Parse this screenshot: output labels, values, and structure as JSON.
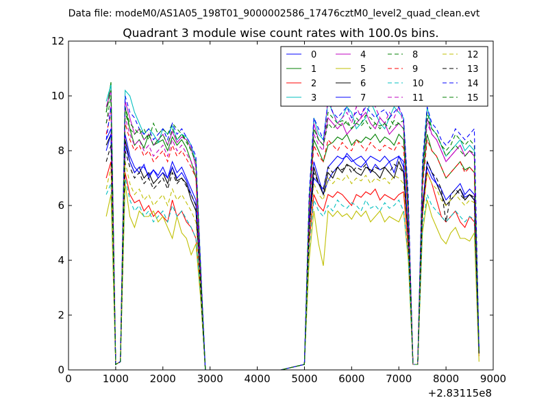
{
  "chart_data": {
    "type": "line",
    "supertitle": "Data file: modeM0/AS1A05_198T01_9000002586_17476cztM0_level2_quad_clean.evt",
    "title": "Quadrant 3 module wise count rates with 100.0s bins.",
    "xlabel": "",
    "ylabel": "",
    "x_offset_label": "+2.83115e8",
    "xlim": [
      0,
      9000
    ],
    "ylim": [
      0,
      12
    ],
    "x_ticks": [
      "0",
      "1000",
      "2000",
      "3000",
      "4000",
      "5000",
      "6000",
      "7000",
      "8000",
      "9000"
    ],
    "y_ticks": [
      "0",
      "2",
      "4",
      "6",
      "8",
      "10",
      "12"
    ],
    "legend_position": "top-right",
    "x": [
      800,
      900,
      1000,
      1100,
      1200,
      1300,
      1400,
      1500,
      1600,
      1700,
      1800,
      1900,
      2000,
      2100,
      2200,
      2300,
      2400,
      2500,
      2600,
      2700,
      2800,
      2900,
      3000,
      3500,
      4000,
      4500,
      5000,
      5100,
      5200,
      5300,
      5400,
      5500,
      5600,
      5700,
      5800,
      5900,
      6000,
      6100,
      6200,
      6300,
      6400,
      6500,
      6600,
      6700,
      6800,
      6900,
      7000,
      7100,
      7200,
      7300,
      7400,
      7500,
      7600,
      7700,
      7800,
      7900,
      8000,
      8100,
      8200,
      8300,
      8400,
      8500,
      8600,
      8700
    ],
    "series": [
      {
        "name": "0",
        "color": "#0000ff",
        "dash": "solid",
        "values": [
          8.4,
          8.8,
          0.2,
          0.3,
          8.6,
          7.8,
          7.4,
          7.2,
          7.5,
          7.0,
          7.3,
          7.1,
          7.4,
          7.0,
          7.6,
          7.2,
          7.4,
          7.0,
          6.6,
          6.2,
          3.2,
          0.0,
          0,
          0,
          0,
          0,
          0.2,
          5.4,
          7.6,
          7.0,
          6.4,
          6.9,
          7.2,
          7.4,
          7.6,
          7.9,
          7.7,
          7.5,
          7.4,
          7.6,
          7.2,
          7.5,
          7.3,
          7.4,
          7.6,
          7.2,
          7.8,
          7.4,
          5.0,
          0.2,
          0.2,
          6.0,
          7.4,
          7.0,
          6.8,
          6.4,
          6.0,
          6.2,
          6.4,
          6.6,
          6.3,
          6.4,
          6.2,
          0.6
        ]
      },
      {
        "name": "1",
        "color": "#008000",
        "dash": "solid",
        "values": [
          9.4,
          10.5,
          0.2,
          0.3,
          9.6,
          8.8,
          8.2,
          8.4,
          8.1,
          8.6,
          8.2,
          8.3,
          8.4,
          8.0,
          8.5,
          8.2,
          8.4,
          8.1,
          7.6,
          7.0,
          3.6,
          0.0,
          0,
          0,
          0,
          0,
          0.2,
          6.0,
          8.4,
          8.0,
          7.6,
          8.2,
          8.3,
          8.5,
          8.4,
          8.6,
          8.2,
          8.4,
          8.3,
          8.5,
          8.4,
          8.6,
          8.3,
          8.5,
          8.4,
          8.2,
          8.6,
          8.4,
          5.6,
          0.2,
          0.2,
          6.8,
          8.6,
          8.0,
          7.8,
          7.4,
          7.0,
          7.2,
          7.4,
          7.6,
          7.3,
          7.4,
          7.2,
          0.6
        ]
      },
      {
        "name": "2",
        "color": "#ff0000",
        "dash": "solid",
        "values": [
          7.0,
          7.6,
          0.2,
          0.3,
          7.2,
          6.4,
          6.1,
          6.2,
          5.8,
          6.0,
          5.6,
          5.8,
          5.6,
          5.4,
          6.2,
          5.6,
          5.8,
          5.4,
          5.2,
          4.8,
          2.8,
          0.0,
          0,
          0,
          0,
          0,
          0.2,
          4.6,
          6.4,
          6.0,
          5.8,
          6.4,
          6.3,
          6.5,
          6.4,
          6.2,
          6.0,
          6.4,
          6.3,
          6.5,
          6.4,
          6.6,
          6.2,
          6.4,
          6.3,
          6.2,
          6.4,
          6.5,
          4.4,
          0.2,
          0.2,
          5.6,
          7.2,
          6.8,
          6.2,
          5.6,
          5.4,
          5.6,
          5.8,
          5.4,
          5.2,
          5.6,
          5.4,
          0.5
        ]
      },
      {
        "name": "3",
        "color": "#00bfbf",
        "dash": "solid",
        "values": [
          9.8,
          10.4,
          0.2,
          0.3,
          10.2,
          10.0,
          9.4,
          9.0,
          8.6,
          8.8,
          8.6,
          8.3,
          8.8,
          8.6,
          8.9,
          8.4,
          8.6,
          8.5,
          8.2,
          7.6,
          3.8,
          0.0,
          0,
          0,
          0,
          0,
          0.2,
          6.2,
          9.2,
          8.6,
          8.4,
          9.8,
          9.4,
          9.0,
          9.2,
          9.6,
          9.4,
          8.8,
          9.0,
          9.2,
          9.8,
          9.4,
          9.0,
          8.8,
          9.2,
          9.6,
          9.4,
          9.2,
          6.2,
          0.2,
          0.2,
          7.4,
          9.6,
          8.8,
          8.6,
          8.2,
          7.8,
          8.0,
          8.2,
          8.4,
          8.0,
          8.2,
          8.0,
          0.7
        ]
      },
      {
        "name": "4",
        "color": "#bf00bf",
        "dash": "solid",
        "values": [
          9.6,
          10.2,
          0.2,
          0.3,
          9.8,
          9.2,
          8.6,
          8.8,
          8.4,
          8.6,
          8.2,
          8.4,
          8.6,
          8.2,
          8.7,
          8.3,
          8.5,
          8.4,
          8.1,
          7.4,
          3.7,
          0.0,
          0,
          0,
          0,
          0,
          0.2,
          6.0,
          9.0,
          8.4,
          8.2,
          9.2,
          9.0,
          8.8,
          9.0,
          8.6,
          8.8,
          9.0,
          9.2,
          9.4,
          9.0,
          8.8,
          9.2,
          9.0,
          8.6,
          8.8,
          9.0,
          8.8,
          6.0,
          0.2,
          0.2,
          7.2,
          9.2,
          8.6,
          8.4,
          8.0,
          7.6,
          7.8,
          8.0,
          8.2,
          7.8,
          8.0,
          7.8,
          0.7
        ]
      },
      {
        "name": "5",
        "color": "#bfbf00",
        "dash": "solid",
        "values": [
          5.6,
          6.4,
          0.2,
          0.3,
          6.8,
          5.6,
          5.2,
          5.8,
          5.6,
          5.6,
          5.8,
          5.4,
          5.6,
          5.2,
          4.8,
          5.6,
          5.0,
          4.8,
          4.2,
          4.6,
          2.6,
          0.0,
          0,
          0,
          0,
          0,
          0.2,
          4.0,
          5.8,
          4.6,
          3.8,
          5.8,
          5.6,
          5.8,
          5.6,
          5.7,
          5.5,
          5.8,
          5.6,
          5.8,
          5.4,
          5.6,
          5.8,
          5.4,
          5.6,
          5.5,
          5.4,
          5.8,
          4.0,
          0.2,
          0.2,
          5.0,
          6.2,
          5.6,
          5.2,
          4.8,
          4.6,
          5.0,
          5.2,
          4.8,
          4.8,
          4.7,
          5.0,
          0.3
        ]
      },
      {
        "name": "6",
        "color": "#000000",
        "dash": "solid",
        "values": [
          8.2,
          8.6,
          0.2,
          0.3,
          8.4,
          7.6,
          7.2,
          7.4,
          7.0,
          7.2,
          6.8,
          7.0,
          7.2,
          6.8,
          7.4,
          6.9,
          7.0,
          6.8,
          6.2,
          5.8,
          3.0,
          0.0,
          0,
          0,
          0,
          0,
          0.2,
          5.2,
          7.4,
          6.8,
          6.4,
          7.2,
          7.0,
          7.4,
          7.2,
          7.5,
          7.4,
          7.2,
          7.1,
          7.4,
          7.3,
          7.2,
          7.0,
          7.4,
          7.2,
          7.0,
          7.6,
          7.2,
          4.8,
          0.2,
          0.2,
          5.8,
          7.6,
          7.2,
          6.8,
          6.4,
          6.0,
          6.2,
          6.4,
          6.6,
          6.2,
          6.4,
          6.2,
          0.6
        ]
      },
      {
        "name": "7",
        "color": "#0000ff",
        "dash": "solid",
        "values": [
          8.0,
          8.6,
          0.2,
          0.3,
          8.2,
          7.6,
          7.2,
          7.4,
          7.4,
          7.1,
          7.3,
          7.0,
          7.2,
          7.0,
          7.4,
          7.0,
          7.2,
          6.9,
          6.4,
          6.0,
          3.0,
          0.0,
          0,
          0,
          0,
          0,
          0.2,
          5.2,
          7.0,
          6.8,
          6.6,
          7.4,
          7.6,
          7.8,
          7.7,
          7.8,
          7.6,
          7.7,
          7.8,
          7.6,
          7.8,
          7.7,
          7.6,
          7.8,
          7.6,
          7.7,
          7.8,
          7.6,
          5.0,
          0.2,
          0.2,
          6.0,
          7.6,
          7.2,
          6.8,
          6.6,
          6.2,
          6.4,
          6.6,
          6.8,
          6.4,
          6.6,
          6.4,
          0.6
        ]
      },
      {
        "name": "8",
        "color": "#008000",
        "dash": "dashed",
        "values": [
          9.4,
          10.2,
          0.2,
          0.3,
          9.6,
          9.0,
          8.8,
          8.6,
          8.8,
          8.4,
          9.0,
          8.6,
          8.8,
          8.6,
          9.0,
          8.8,
          8.6,
          8.4,
          8.0,
          7.6,
          3.6,
          0.0,
          0,
          0,
          0,
          0,
          0.2,
          6.0,
          8.8,
          8.4,
          8.2,
          9.4,
          9.2,
          9.0,
          9.1,
          9.0,
          8.8,
          9.2,
          9.0,
          9.3,
          9.2,
          9.0,
          8.8,
          9.0,
          9.2,
          8.9,
          9.0,
          9.1,
          6.0,
          0.2,
          0.2,
          7.2,
          9.4,
          8.8,
          8.6,
          8.2,
          8.0,
          8.2,
          8.6,
          8.4,
          8.2,
          8.4,
          8.2,
          0.7
        ]
      },
      {
        "name": "9",
        "color": "#ff0000",
        "dash": "dashed",
        "values": [
          8.6,
          9.4,
          0.2,
          0.3,
          9.0,
          8.4,
          8.0,
          8.2,
          7.8,
          8.0,
          7.6,
          7.8,
          8.0,
          7.6,
          8.2,
          7.8,
          8.0,
          7.7,
          7.4,
          7.0,
          3.4,
          0.0,
          0,
          0,
          0,
          0,
          0.2,
          5.8,
          8.2,
          7.8,
          7.6,
          8.4,
          8.2,
          8.0,
          8.3,
          8.1,
          8.0,
          8.4,
          8.2,
          8.0,
          8.3,
          8.1,
          8.0,
          8.2,
          8.1,
          8.0,
          8.3,
          8.1,
          5.6,
          0.2,
          0.2,
          6.6,
          8.4,
          8.0,
          7.8,
          7.4,
          7.0,
          7.2,
          7.4,
          7.6,
          7.2,
          7.4,
          7.2,
          0.6
        ]
      },
      {
        "name": "10",
        "color": "#00bfbf",
        "dash": "dashed",
        "values": [
          6.4,
          6.8,
          0.2,
          0.3,
          7.0,
          6.2,
          5.8,
          6.0,
          5.6,
          5.8,
          5.4,
          5.6,
          5.8,
          5.4,
          6.0,
          5.6,
          5.8,
          5.5,
          5.2,
          4.8,
          2.8,
          0.0,
          0,
          0,
          0,
          0,
          0.2,
          4.4,
          6.2,
          5.8,
          5.6,
          6.0,
          5.8,
          6.2,
          6.0,
          5.9,
          6.1,
          6.0,
          5.8,
          6.2,
          5.9,
          6.0,
          5.8,
          6.1,
          5.9,
          6.0,
          6.2,
          5.8,
          4.2,
          0.2,
          0.2,
          5.2,
          6.4,
          6.0,
          5.8,
          5.6,
          5.4,
          5.6,
          5.8,
          5.6,
          5.4,
          5.6,
          5.5,
          0.5
        ]
      },
      {
        "name": "11",
        "color": "#bf00bf",
        "dash": "dashed",
        "values": [
          9.0,
          9.6,
          0.2,
          0.3,
          9.2,
          8.6,
          8.2,
          8.4,
          8.0,
          8.2,
          7.8,
          8.0,
          8.2,
          7.8,
          8.4,
          8.0,
          8.2,
          7.9,
          7.6,
          7.2,
          3.5,
          0.0,
          0,
          0,
          0,
          0,
          0.2,
          5.8,
          8.6,
          8.2,
          8.0,
          10.0,
          9.4,
          9.0,
          9.2,
          9.4,
          9.0,
          9.6,
          9.2,
          9.8,
          10.0,
          9.6,
          9.2,
          9.0,
          9.4,
          9.2,
          9.6,
          9.0,
          6.0,
          0.2,
          0.2,
          7.0,
          9.0,
          8.6,
          8.4,
          8.0,
          7.6,
          7.8,
          8.0,
          8.2,
          7.8,
          8.0,
          7.8,
          0.7
        ]
      },
      {
        "name": "12",
        "color": "#bfbf00",
        "dash": "dashed",
        "values": [
          6.6,
          7.4,
          0.2,
          0.3,
          7.6,
          6.8,
          6.4,
          6.6,
          6.2,
          6.4,
          6.0,
          6.2,
          6.4,
          6.0,
          6.6,
          6.2,
          6.4,
          6.1,
          5.8,
          5.4,
          3.0,
          0.0,
          0,
          0,
          0,
          0,
          0.2,
          4.8,
          6.8,
          6.4,
          6.2,
          7.0,
          6.8,
          7.0,
          6.9,
          7.1,
          6.8,
          7.0,
          6.9,
          7.1,
          6.8,
          7.0,
          6.9,
          7.0,
          6.8,
          7.1,
          7.0,
          6.8,
          4.6,
          0.2,
          0.2,
          5.6,
          7.2,
          6.8,
          6.6,
          6.2,
          6.0,
          6.2,
          6.4,
          6.2,
          6.0,
          6.2,
          6.1,
          0.5
        ]
      },
      {
        "name": "13",
        "color": "#000000",
        "dash": "dashed",
        "values": [
          7.6,
          8.2,
          0.2,
          0.3,
          8.0,
          7.4,
          7.0,
          7.2,
          6.8,
          7.0,
          6.6,
          6.8,
          7.0,
          6.6,
          7.2,
          6.8,
          7.0,
          6.7,
          6.4,
          6.0,
          3.0,
          0.0,
          0,
          0,
          0,
          0,
          0.2,
          5.0,
          7.2,
          6.8,
          6.6,
          7.4,
          7.2,
          7.4,
          7.3,
          7.5,
          7.2,
          7.4,
          7.3,
          7.5,
          7.2,
          7.4,
          7.3,
          7.4,
          7.2,
          7.5,
          7.4,
          7.2,
          4.8,
          0.2,
          0.2,
          5.8,
          7.6,
          7.2,
          7.0,
          6.6,
          5.4,
          6.4,
          6.6,
          6.4,
          6.2,
          6.4,
          6.3,
          0.6
        ]
      },
      {
        "name": "14",
        "color": "#0000ff",
        "dash": "dashed",
        "values": [
          8.4,
          9.6,
          0.2,
          0.3,
          10.0,
          9.4,
          9.2,
          8.8,
          8.6,
          8.8,
          8.4,
          8.6,
          8.8,
          8.4,
          9.0,
          8.6,
          8.8,
          8.5,
          8.2,
          7.8,
          3.8,
          0.0,
          0,
          0,
          0,
          0,
          0.2,
          6.4,
          9.2,
          8.8,
          8.4,
          9.8,
          9.4,
          9.2,
          9.4,
          9.6,
          9.2,
          9.4,
          9.3,
          9.6,
          9.4,
          9.2,
          9.4,
          9.5,
          9.2,
          9.4,
          9.6,
          9.2,
          6.4,
          0.2,
          0.2,
          7.6,
          9.6,
          9.0,
          8.8,
          8.4,
          8.2,
          8.4,
          8.8,
          8.6,
          8.4,
          8.6,
          8.8,
          0.7
        ]
      },
      {
        "name": "15",
        "color": "#008000",
        "dash": "dashed",
        "values": [
          9.0,
          10.0,
          0.2,
          0.3,
          9.4,
          8.8,
          8.6,
          8.8,
          8.4,
          8.6,
          8.2,
          8.4,
          8.6,
          8.2,
          8.8,
          8.4,
          8.6,
          8.3,
          8.0,
          7.6,
          3.6,
          0.0,
          0,
          0,
          0,
          0,
          0.2,
          6.0,
          8.8,
          8.4,
          8.2,
          9.0,
          8.8,
          9.0,
          8.9,
          9.1,
          8.8,
          9.0,
          8.9,
          9.1,
          8.8,
          9.0,
          8.9,
          9.0,
          8.8,
          9.1,
          9.0,
          8.8,
          5.8,
          0.2,
          0.2,
          7.0,
          9.2,
          8.8,
          8.6,
          8.2,
          7.8,
          8.0,
          8.2,
          8.0,
          7.8,
          8.0,
          7.9,
          0.7
        ]
      }
    ]
  }
}
